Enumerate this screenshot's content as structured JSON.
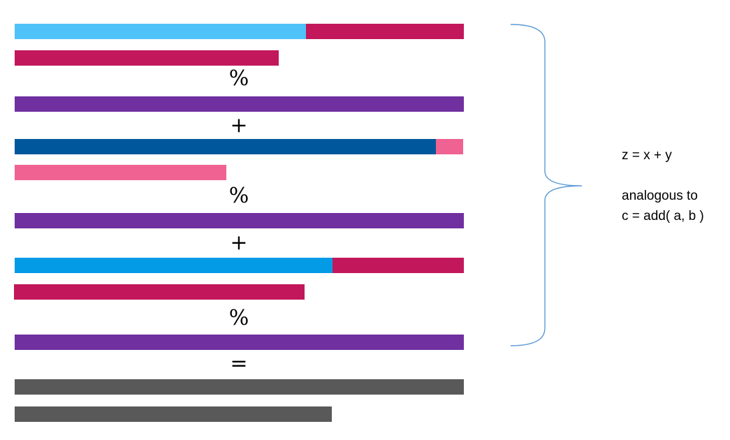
{
  "rows": [
    {
      "type": "bar",
      "name": "x-array",
      "segments": [
        {
          "fraction": 0.648,
          "color": "#4FC3F7"
        },
        {
          "fraction": 0.352,
          "color": "#C2185B"
        }
      ]
    },
    {
      "type": "bar",
      "name": "modulus",
      "segments": [
        {
          "fraction": 1.0,
          "color": "#C2185B"
        }
      ]
    },
    {
      "type": "op",
      "name": "modulo-operator",
      "symbol": "%"
    },
    {
      "type": "bar",
      "name": "x-result",
      "segments": [
        {
          "fraction": 1.0,
          "color": "#7030A0"
        }
      ]
    },
    {
      "type": "op",
      "name": "plus-operator",
      "symbol": "+"
    },
    {
      "type": "bar",
      "name": "y-array",
      "segments": [
        {
          "fraction": 0.94,
          "color": "#01579B"
        },
        {
          "fraction": 0.06,
          "color": "#F06292"
        }
      ]
    },
    {
      "type": "bar",
      "name": "modulus",
      "segments": [
        {
          "fraction": 1.0,
          "color": "#F06292"
        }
      ]
    },
    {
      "type": "op",
      "name": "modulo-operator",
      "symbol": "%"
    },
    {
      "type": "bar",
      "name": "y-result",
      "segments": [
        {
          "fraction": 1.0,
          "color": "#7030A0"
        }
      ]
    },
    {
      "type": "op",
      "name": "plus-operator",
      "symbol": "+"
    },
    {
      "type": "bar",
      "name": "z-array",
      "segments": [
        {
          "fraction": 0.708,
          "color": "#039BE5"
        },
        {
          "fraction": 0.292,
          "color": "#C2185B"
        }
      ]
    },
    {
      "type": "bar",
      "name": "modulus",
      "segments": [
        {
          "fraction": 1.0,
          "color": "#C2185B"
        }
      ]
    },
    {
      "type": "op",
      "name": "modulo-operator",
      "symbol": "%"
    },
    {
      "type": "bar",
      "name": "z-result",
      "segments": [
        {
          "fraction": 1.0,
          "color": "#7030A0"
        }
      ]
    },
    {
      "type": "op",
      "name": "equals-operator",
      "symbol": "="
    },
    {
      "type": "bar",
      "name": "sum-result",
      "segments": [
        {
          "fraction": 1.0,
          "color": "#595959"
        }
      ]
    },
    {
      "type": "bar",
      "name": "sum-result",
      "segments": [
        {
          "fraction": 1.0,
          "color": "#595959"
        }
      ]
    }
  ],
  "brace_color": "#5B9BD5",
  "annotation": {
    "line1": "z = x + y",
    "line2": "analogous to",
    "line3": "c = add( a, b )"
  }
}
